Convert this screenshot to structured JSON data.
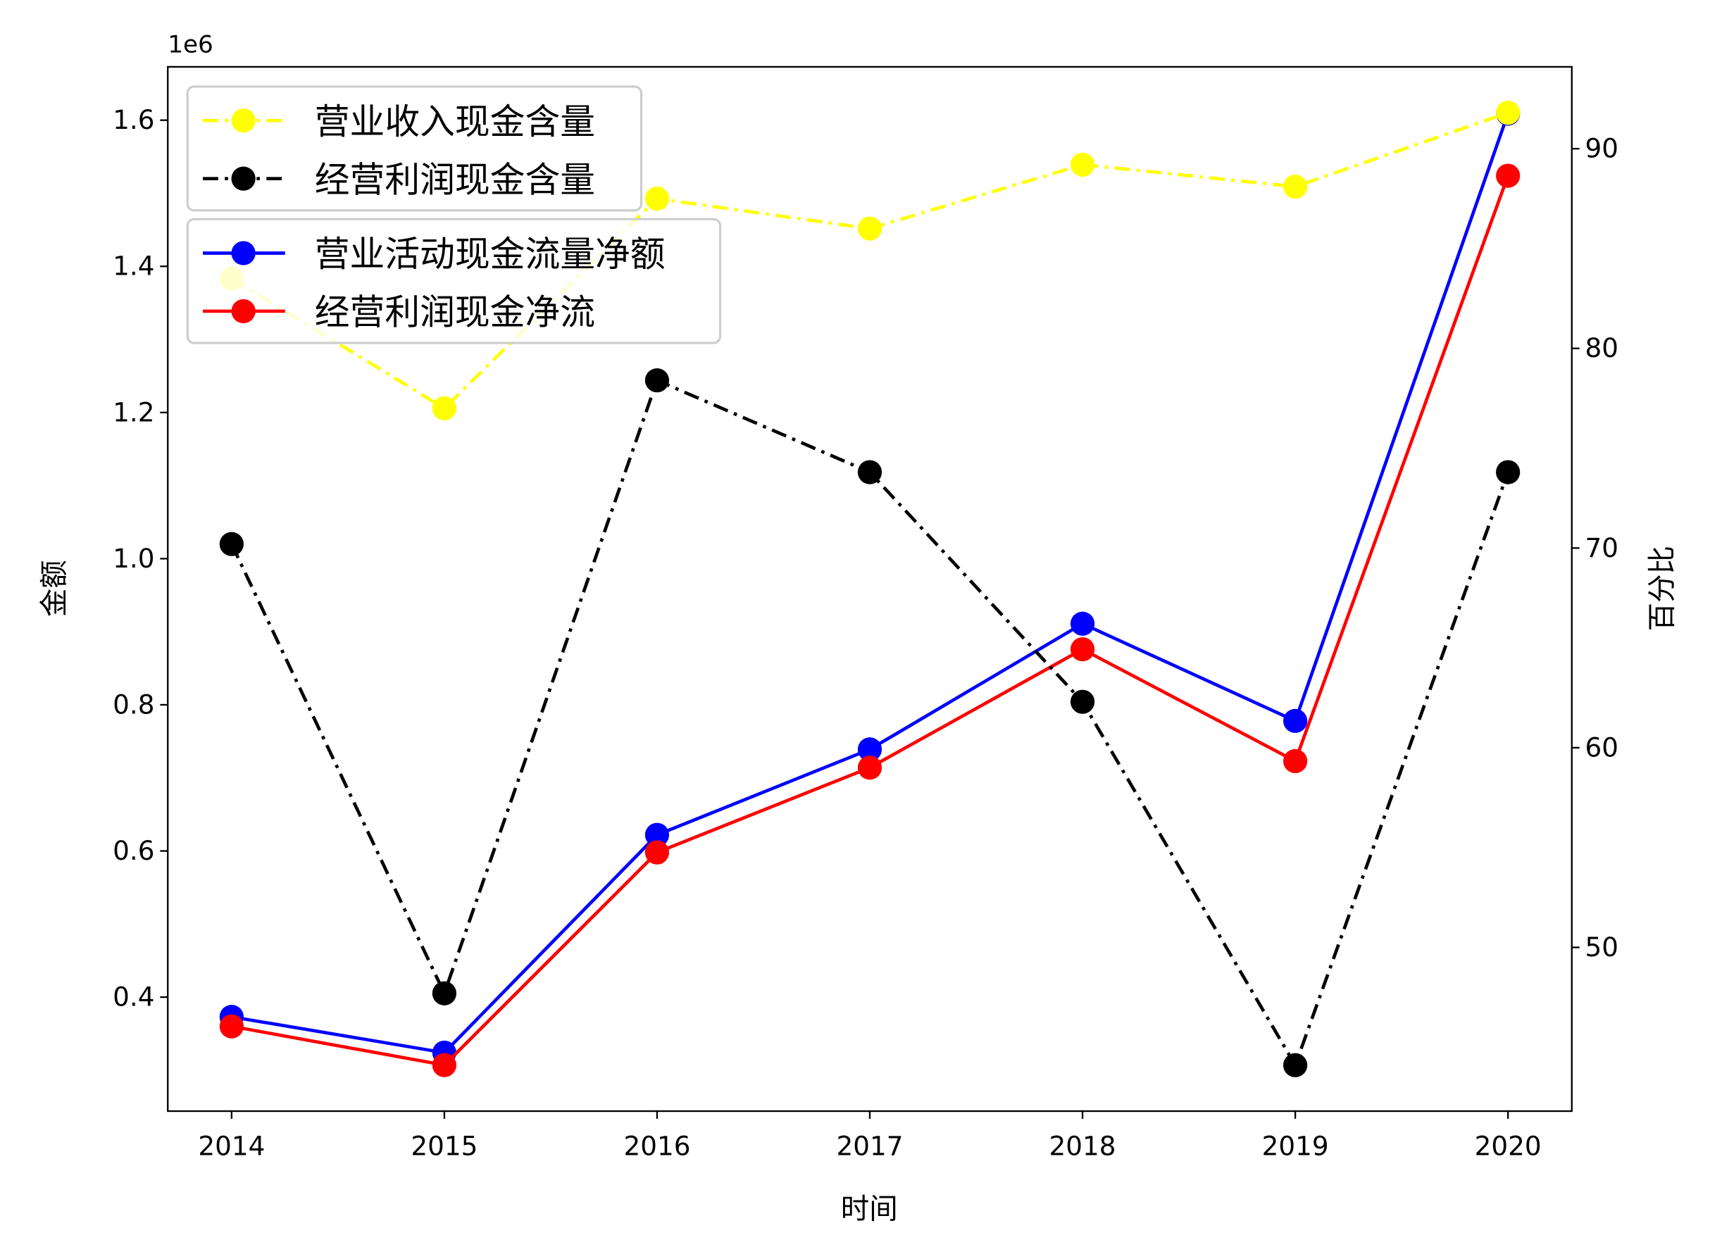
{
  "chart_data": {
    "type": "line",
    "xlabel": "时间",
    "ylabel_left": "金额",
    "ylabel_right": "百分比",
    "left_offset_label": "1e6",
    "x": [
      2014,
      2015,
      2016,
      2017,
      2018,
      2019,
      2020
    ],
    "xlim": [
      2013.7,
      2020.3
    ],
    "ylim_left": [
      0.244,
      1.673
    ],
    "ylim_right": [
      41.8,
      94.1
    ],
    "left_ticks": [
      "0.4",
      "0.6",
      "0.8",
      "1.0",
      "1.2",
      "1.4",
      "1.6"
    ],
    "right_ticks": [
      "50",
      "60",
      "70",
      "80",
      "90"
    ],
    "grid": false,
    "series": [
      {
        "name": "营业活动现金流量净额",
        "axis": "left",
        "color": "#0000ff",
        "style": "solid",
        "values": [
          373000,
          324000,
          622000,
          739000,
          911000,
          778000,
          1609000
        ]
      },
      {
        "name": "经营利润现金净流",
        "axis": "left",
        "color": "#ff0000",
        "style": "solid",
        "values": [
          360000,
          307000,
          598000,
          714000,
          876000,
          723000,
          1524000
        ]
      },
      {
        "name": "营业收入现金含量",
        "axis": "right",
        "color": "#ffff00",
        "style": "dashdot",
        "values": [
          83.5,
          77.0,
          87.5,
          86.0,
          89.2,
          88.1,
          91.8
        ]
      },
      {
        "name": "经营利润现金含量",
        "axis": "right",
        "color": "#000000",
        "style": "dashdot",
        "values": [
          70.2,
          47.7,
          78.4,
          73.8,
          62.3,
          44.1,
          73.8
        ]
      }
    ],
    "legends": [
      {
        "placement": "top-left",
        "entries": [
          0,
          1
        ]
      },
      {
        "placement": "top-left",
        "entries": [
          2,
          3
        ]
      }
    ]
  }
}
